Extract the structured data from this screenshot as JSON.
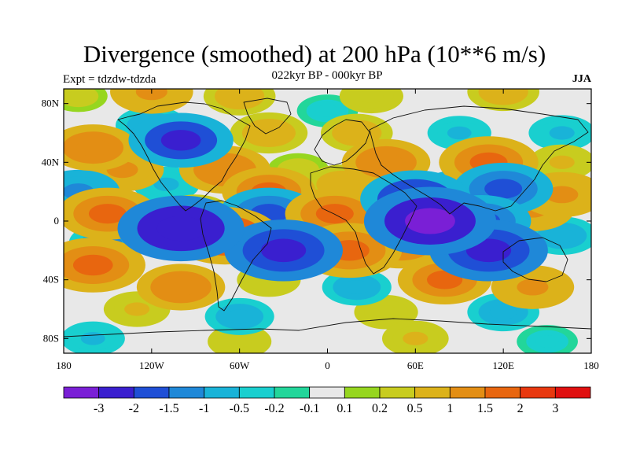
{
  "title": "Divergence (smoothed) at 200 hPa (10**6 m/s)",
  "left_label": "Expt = tdzdw-tdzda",
  "center_label": "022kyr BP - 000kyr BP",
  "right_label": "JJA",
  "y_ticks": [
    {
      "value": 80,
      "label": "80N"
    },
    {
      "value": 40,
      "label": "40N"
    },
    {
      "value": 0,
      "label": "0"
    },
    {
      "value": -40,
      "label": "40S"
    },
    {
      "value": -80,
      "label": "80S"
    }
  ],
  "x_ticks": [
    {
      "value": -180,
      "label": "180"
    },
    {
      "value": -120,
      "label": "120W"
    },
    {
      "value": -60,
      "label": "60W"
    },
    {
      "value": 0,
      "label": "0"
    },
    {
      "value": 60,
      "label": "60E"
    },
    {
      "value": 120,
      "label": "120E"
    },
    {
      "value": 180,
      "label": "180"
    }
  ],
  "colorbar": {
    "colors": [
      "#7a1fd6",
      "#3a1fcf",
      "#1f4fd6",
      "#1f88d8",
      "#19b3d8",
      "#19cfcf",
      "#22d69a",
      "#e8e8e8",
      "#96d61f",
      "#c8cc1f",
      "#dcb21a",
      "#e38e14",
      "#e8660f",
      "#e8380f",
      "#e01010"
    ],
    "labels": [
      "-3",
      "-2",
      "-1.5",
      "-1",
      "-0.5",
      "-0.2",
      "-0.1",
      "0.1",
      "0.2",
      "0.5",
      "1",
      "1.5",
      "2",
      "3"
    ]
  },
  "anomalies": [
    {
      "lon": -170,
      "lat": 85,
      "v": 0.3
    },
    {
      "lon": -120,
      "lat": 88,
      "v": 1.2
    },
    {
      "lon": -60,
      "lat": 85,
      "v": 0.8
    },
    {
      "lon": 30,
      "lat": 85,
      "v": 0.5
    },
    {
      "lon": 120,
      "lat": 88,
      "v": 0.8
    },
    {
      "lon": 0,
      "lat": 75,
      "v": -0.4
    },
    {
      "lon": -120,
      "lat": 65,
      "v": -0.8
    },
    {
      "lon": -160,
      "lat": 50,
      "v": 1.4
    },
    {
      "lon": -100,
      "lat": 55,
      "v": -2.0
    },
    {
      "lon": -40,
      "lat": 60,
      "v": 1.0
    },
    {
      "lon": 20,
      "lat": 60,
      "v": 0.8
    },
    {
      "lon": 90,
      "lat": 60,
      "v": -0.5
    },
    {
      "lon": 160,
      "lat": 60,
      "v": -0.6
    },
    {
      "lon": -140,
      "lat": 35,
      "v": 1.2
    },
    {
      "lon": -70,
      "lat": 35,
      "v": 1.5
    },
    {
      "lon": -20,
      "lat": 35,
      "v": 0.4
    },
    {
      "lon": 40,
      "lat": 40,
      "v": 1.4
    },
    {
      "lon": 110,
      "lat": 40,
      "v": 1.8
    },
    {
      "lon": 160,
      "lat": 40,
      "v": 0.6
    },
    {
      "lon": -170,
      "lat": 20,
      "v": -1.2
    },
    {
      "lon": -110,
      "lat": 25,
      "v": -0.6
    },
    {
      "lon": -40,
      "lat": 20,
      "v": 1.6
    },
    {
      "lon": 10,
      "lat": 25,
      "v": 0.9
    },
    {
      "lon": 60,
      "lat": 15,
      "v": -2.2
    },
    {
      "lon": 90,
      "lat": 20,
      "v": -1.2
    },
    {
      "lon": 120,
      "lat": 22,
      "v": -1.8
    },
    {
      "lon": 160,
      "lat": 18,
      "v": 1.3
    },
    {
      "lon": -150,
      "lat": 5,
      "v": 1.8
    },
    {
      "lon": -90,
      "lat": 5,
      "v": 0.8
    },
    {
      "lon": -40,
      "lat": 5,
      "v": -1.8
    },
    {
      "lon": 5,
      "lat": 5,
      "v": 1.8
    },
    {
      "lon": 70,
      "lat": 0,
      "v": -3.0
    },
    {
      "lon": 105,
      "lat": 0,
      "v": -1.8
    },
    {
      "lon": 140,
      "lat": 8,
      "v": 1.2
    },
    {
      "lon": -150,
      "lat": -15,
      "v": -1.0
    },
    {
      "lon": -100,
      "lat": -5,
      "v": -2.8
    },
    {
      "lon": -70,
      "lat": -10,
      "v": 2.2
    },
    {
      "lon": -30,
      "lat": -20,
      "v": -2.5
    },
    {
      "lon": 15,
      "lat": -20,
      "v": 2.0
    },
    {
      "lon": 50,
      "lat": -15,
      "v": 1.7
    },
    {
      "lon": 110,
      "lat": -20,
      "v": -2.5
    },
    {
      "lon": 160,
      "lat": -10,
      "v": -0.8
    },
    {
      "lon": -160,
      "lat": -30,
      "v": 2.0
    },
    {
      "lon": -100,
      "lat": -45,
      "v": 1.4
    },
    {
      "lon": -40,
      "lat": -40,
      "v": 0.5
    },
    {
      "lon": 20,
      "lat": -45,
      "v": -0.7
    },
    {
      "lon": 80,
      "lat": -40,
      "v": 1.6
    },
    {
      "lon": 140,
      "lat": -45,
      "v": 1.2
    },
    {
      "lon": -130,
      "lat": -60,
      "v": 0.6
    },
    {
      "lon": -60,
      "lat": -65,
      "v": -0.7
    },
    {
      "lon": 40,
      "lat": -62,
      "v": 0.5
    },
    {
      "lon": 120,
      "lat": -62,
      "v": -0.8
    },
    {
      "lon": -160,
      "lat": -80,
      "v": -0.5
    },
    {
      "lon": -60,
      "lat": -82,
      "v": 0.5
    },
    {
      "lon": 60,
      "lat": -80,
      "v": 0.6
    },
    {
      "lon": 150,
      "lat": -82,
      "v": -0.4
    }
  ]
}
